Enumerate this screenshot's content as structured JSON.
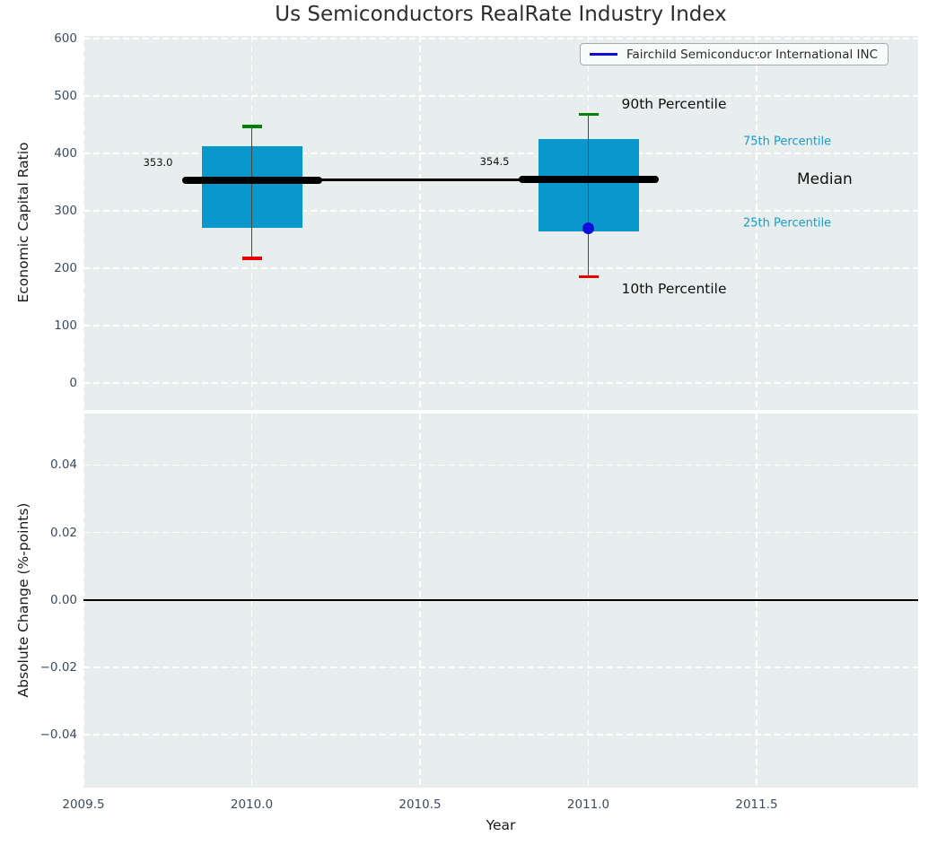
{
  "title": "Us Semiconductors RealRate Industry Index",
  "chart_data": {
    "type": "boxplot",
    "title": "Us Semiconductors RealRate Industry Index",
    "xlabel": "Year",
    "xticks": [
      {
        "v": 2009.5,
        "label": "2009.5"
      },
      {
        "v": 2010.0,
        "label": "2010.0"
      },
      {
        "v": 2010.5,
        "label": "2010.5"
      },
      {
        "v": 2011.0,
        "label": "2011.0"
      },
      {
        "v": 2011.5,
        "label": "2011.5"
      }
    ],
    "xlim": [
      2009.5,
      2011.98
    ],
    "grid": true,
    "panels": [
      {
        "id": "economic-capital-ratio",
        "ylabel": "Economic Capital Ratio",
        "ylim": [
          -47,
          605
        ],
        "yticks": [
          {
            "v": 600,
            "label": "600"
          },
          {
            "v": 500,
            "label": "500"
          },
          {
            "v": 400,
            "label": "400"
          },
          {
            "v": 300,
            "label": "300"
          },
          {
            "v": 200,
            "label": "200"
          },
          {
            "v": 100,
            "label": "100"
          },
          {
            "v": 0,
            "label": "0"
          }
        ],
        "boxes": [
          {
            "x": 2010.0,
            "median": 353.0,
            "q1": 270,
            "q3": 412,
            "whisker_low": 217,
            "whisker_high": 447,
            "value_label": "353.0"
          },
          {
            "x": 2011.0,
            "median": 354.5,
            "q1": 264,
            "q3": 425,
            "whisker_low": 185,
            "whisker_high": 468,
            "value_label": "354.5"
          }
        ],
        "median_line_points": [
          [
            2010.0,
            353.0
          ],
          [
            2011.0,
            354.5
          ]
        ],
        "company_series": {
          "name": "Fairchild Semiconductor International INC",
          "points": [
            {
              "x": 2011.0,
              "y": 270
            }
          ]
        },
        "annotations": [
          {
            "id": "p90",
            "text": "90th Percentile"
          },
          {
            "id": "p10",
            "text": "10th Percentile"
          },
          {
            "id": "p75",
            "text": "75th Percentile"
          },
          {
            "id": "median",
            "text": "Median"
          },
          {
            "id": "p25",
            "text": "25th Percentile"
          }
        ]
      },
      {
        "id": "absolute-change",
        "ylabel": "Absolute Change (%-points)",
        "ylim": [
          -0.0557,
          0.0553
        ],
        "yticks": [
          {
            "v": 0.04,
            "label": "0.04"
          },
          {
            "v": 0.02,
            "label": "0.02"
          },
          {
            "v": 0.0,
            "label": "0.00"
          },
          {
            "v": -0.02,
            "label": "−0.02"
          },
          {
            "v": -0.04,
            "label": "−0.04"
          }
        ],
        "zero_line": 0.0
      }
    ],
    "legend": {
      "position": "upper right",
      "entries": [
        {
          "label": "Fairchild Semiconductor International INC",
          "color": "#0d0dda"
        }
      ]
    },
    "colors": {
      "box_fill": "#0998cb",
      "median_line": "#000000",
      "whisker": "#474747",
      "cap_high": "#008000",
      "cap_low": "#e60000",
      "company_point": "#0d0dda",
      "percentile_label_cyan": "#1a9cc9",
      "annotation_black": "#111111",
      "tick_label": "#3a4b60",
      "axes_background": "#e8eded",
      "gridline": "#ffffff",
      "zero_line": "#000000"
    }
  }
}
